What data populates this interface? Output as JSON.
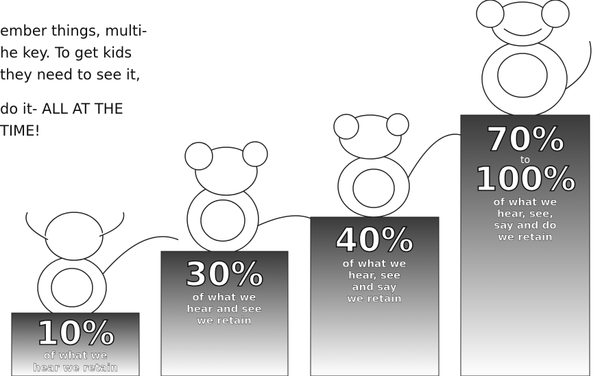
{
  "intro": {
    "lines": [
      "ember things, multi-",
      "he key.  To get kids",
      "they need to see it,",
      "do it- ALL AT THE",
      "TIME!"
    ]
  },
  "podiums": [
    {
      "percent": "10%",
      "lines": [
        "of what we",
        "hear we retain"
      ]
    },
    {
      "percent": "30%",
      "lines": [
        "of what we",
        "hear and see",
        "we retain"
      ]
    },
    {
      "percent": "40%",
      "lines": [
        "of what we",
        "hear, see",
        "and say",
        "we retain"
      ]
    },
    {
      "percent": "70%",
      "to": "to",
      "percent_end": "100%",
      "lines": [
        "of what we",
        "hear, see,",
        "say and do",
        "we retain"
      ]
    }
  ]
}
